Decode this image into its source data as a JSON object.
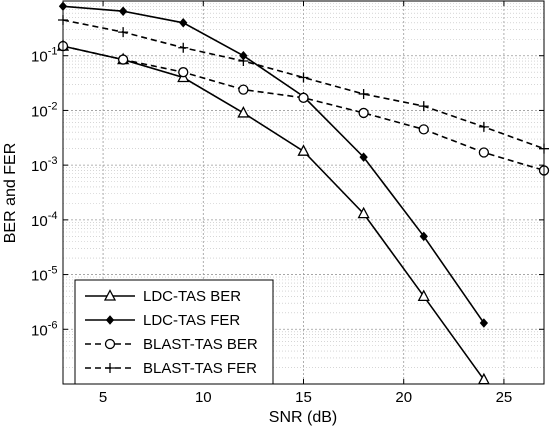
{
  "chart_data": {
    "type": "line",
    "title": "",
    "xlabel": "SNR (dB)",
    "ylabel": "BER and FER",
    "xlim": [
      3,
      27
    ],
    "ylim": [
      1e-07,
      1
    ],
    "yscale": "log",
    "grid": true,
    "legend_position": "bottom-left",
    "x_ticks": [
      5,
      10,
      15,
      20,
      25
    ],
    "x_tick_labels": [
      "5",
      "10",
      "15",
      "20",
      "25"
    ],
    "y_ticks": [
      1e-06,
      1e-05,
      0.0001,
      0.001,
      0.01,
      0.1
    ],
    "y_tick_base": "10",
    "y_tick_exponents": [
      "-6",
      "-5",
      "-4",
      "-3",
      "-2",
      "-1"
    ],
    "series": [
      {
        "name": "LDC-TAS BER",
        "line_style": "solid",
        "marker": "triangle",
        "color": "#000000",
        "x": [
          3,
          6,
          9,
          12,
          15,
          18,
          21,
          24
        ],
        "values": [
          0.15,
          0.085,
          0.04,
          0.009,
          0.0018,
          0.00013,
          4e-06,
          1.2e-07
        ]
      },
      {
        "name": "LDC-TAS FER",
        "line_style": "solid",
        "marker": "diamond",
        "color": "#000000",
        "x": [
          3,
          6,
          9,
          12,
          15,
          18,
          21,
          24
        ],
        "values": [
          0.8,
          0.65,
          0.4,
          0.1,
          0.018,
          0.0014,
          5e-05,
          1.3e-06
        ]
      },
      {
        "name": "BLAST-TAS BER",
        "line_style": "dashed",
        "marker": "circle",
        "color": "#000000",
        "x": [
          3,
          6,
          9,
          12,
          15,
          18,
          21,
          24,
          27
        ],
        "values": [
          0.15,
          0.085,
          0.05,
          0.024,
          0.017,
          0.009,
          0.0045,
          0.0017,
          0.0008
        ]
      },
      {
        "name": "BLAST-TAS FER",
        "line_style": "dashed",
        "marker": "plus",
        "color": "#000000",
        "x": [
          3,
          6,
          9,
          12,
          15,
          18,
          21,
          24,
          27
        ],
        "values": [
          0.45,
          0.27,
          0.14,
          0.08,
          0.04,
          0.02,
          0.012,
          0.005,
          0.002
        ]
      }
    ]
  }
}
